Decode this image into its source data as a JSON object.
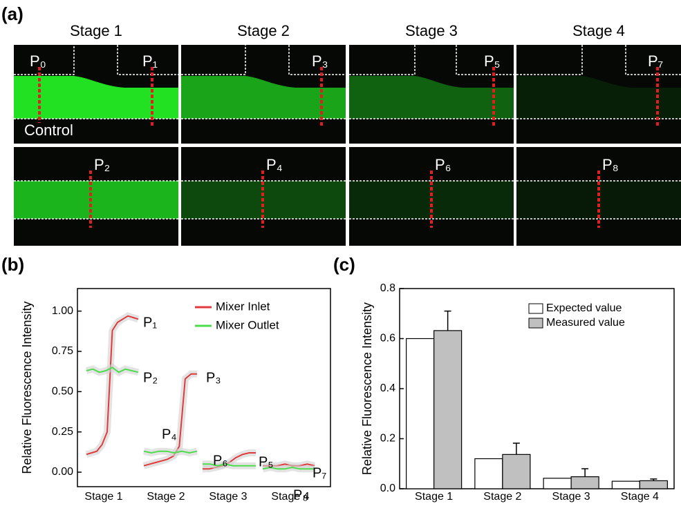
{
  "panel_labels": [
    "(a)",
    "(b)",
    "(c)"
  ],
  "panel_a": {
    "stages": [
      "Stage 1",
      "Stage 2",
      "Stage 3",
      "Stage 4"
    ],
    "top_points": [
      "P₀",
      "P₁",
      "P₃",
      "P₅",
      "P₇"
    ],
    "bottom_points": [
      "P₂",
      "P₄",
      "P₆",
      "P₈"
    ],
    "control": "Control"
  },
  "chart_data": [
    {
      "type": "line",
      "ylabel": "Relative Fluorescence Intensity",
      "categories": [
        "Stage 1",
        "Stage 2",
        "Stage 3",
        "Stage 4"
      ],
      "ylim": [
        -0.09,
        1.14
      ],
      "yticks": [
        {
          "value": 0,
          "label": "0.00"
        },
        {
          "value": 0.25,
          "label": "0.25"
        },
        {
          "value": 0.5,
          "label": "0.50"
        },
        {
          "value": 0.75,
          "label": "0.75"
        },
        {
          "value": 1,
          "label": "1.00"
        }
      ],
      "series": [
        {
          "name": "Mixer Inlet",
          "color": "#e03a3a",
          "values": [
            [
              0.11,
              0.12,
              0.13,
              0.17,
              0.25,
              0.88,
              0.93,
              0.95,
              0.97,
              0.96,
              0.95
            ],
            [
              0.04,
              0.05,
              0.06,
              0.07,
              0.08,
              0.1,
              0.16,
              0.58,
              0.61,
              0.61
            ],
            [
              0.02,
              0.02,
              0.03,
              0.04,
              0.06,
              0.09,
              0.11,
              0.12,
              0.12
            ],
            [
              0.04,
              0.04,
              0.04,
              0.05,
              0.04,
              0.04,
              0.05,
              0.04
            ]
          ]
        },
        {
          "name": "Mixer Outlet",
          "color": "#4cdc4c",
          "values": [
            [
              0.63,
              0.64,
              0.62,
              0.63,
              0.65,
              0.62,
              0.64,
              0.63,
              0.62
            ],
            [
              0.13,
              0.12,
              0.13,
              0.13,
              0.12,
              0.13,
              0.12,
              0.13
            ],
            [
              0.05,
              0.05,
              0.04,
              0.05,
              0.04,
              0.04,
              0.04,
              0.04
            ],
            [
              0.02,
              0.03,
              0.02,
              0.02,
              0.03,
              0.02,
              0.02,
              0.02
            ]
          ]
        }
      ],
      "annotations": [
        "P₁",
        "P₂",
        "P₃",
        "P₄",
        "P₅",
        "P₆",
        "P₇",
        "P₈"
      ]
    },
    {
      "type": "bar",
      "ylabel": "Relative Fluorescence Intensity",
      "categories": [
        "Stage 1",
        "Stage 2",
        "Stage 3",
        "Stage 4"
      ],
      "ylim": [
        0,
        0.8
      ],
      "yticks": [
        {
          "value": 0,
          "label": "0.0"
        },
        {
          "value": 0.2,
          "label": "0.2"
        },
        {
          "value": 0.4,
          "label": "0.4"
        },
        {
          "value": 0.6,
          "label": "0.6"
        },
        {
          "value": 0.8,
          "label": "0.8"
        }
      ],
      "series": [
        {
          "name": "Expected value",
          "color": "#ffffff",
          "values": [
            0.6,
            0.12,
            0.042,
            0.03
          ]
        },
        {
          "name": "Measured value",
          "color": "#c0c0c0",
          "values": [
            0.632,
            0.137,
            0.048,
            0.032
          ],
          "errors": [
            0.078,
            0.045,
            0.032,
            0.007
          ]
        }
      ]
    }
  ]
}
